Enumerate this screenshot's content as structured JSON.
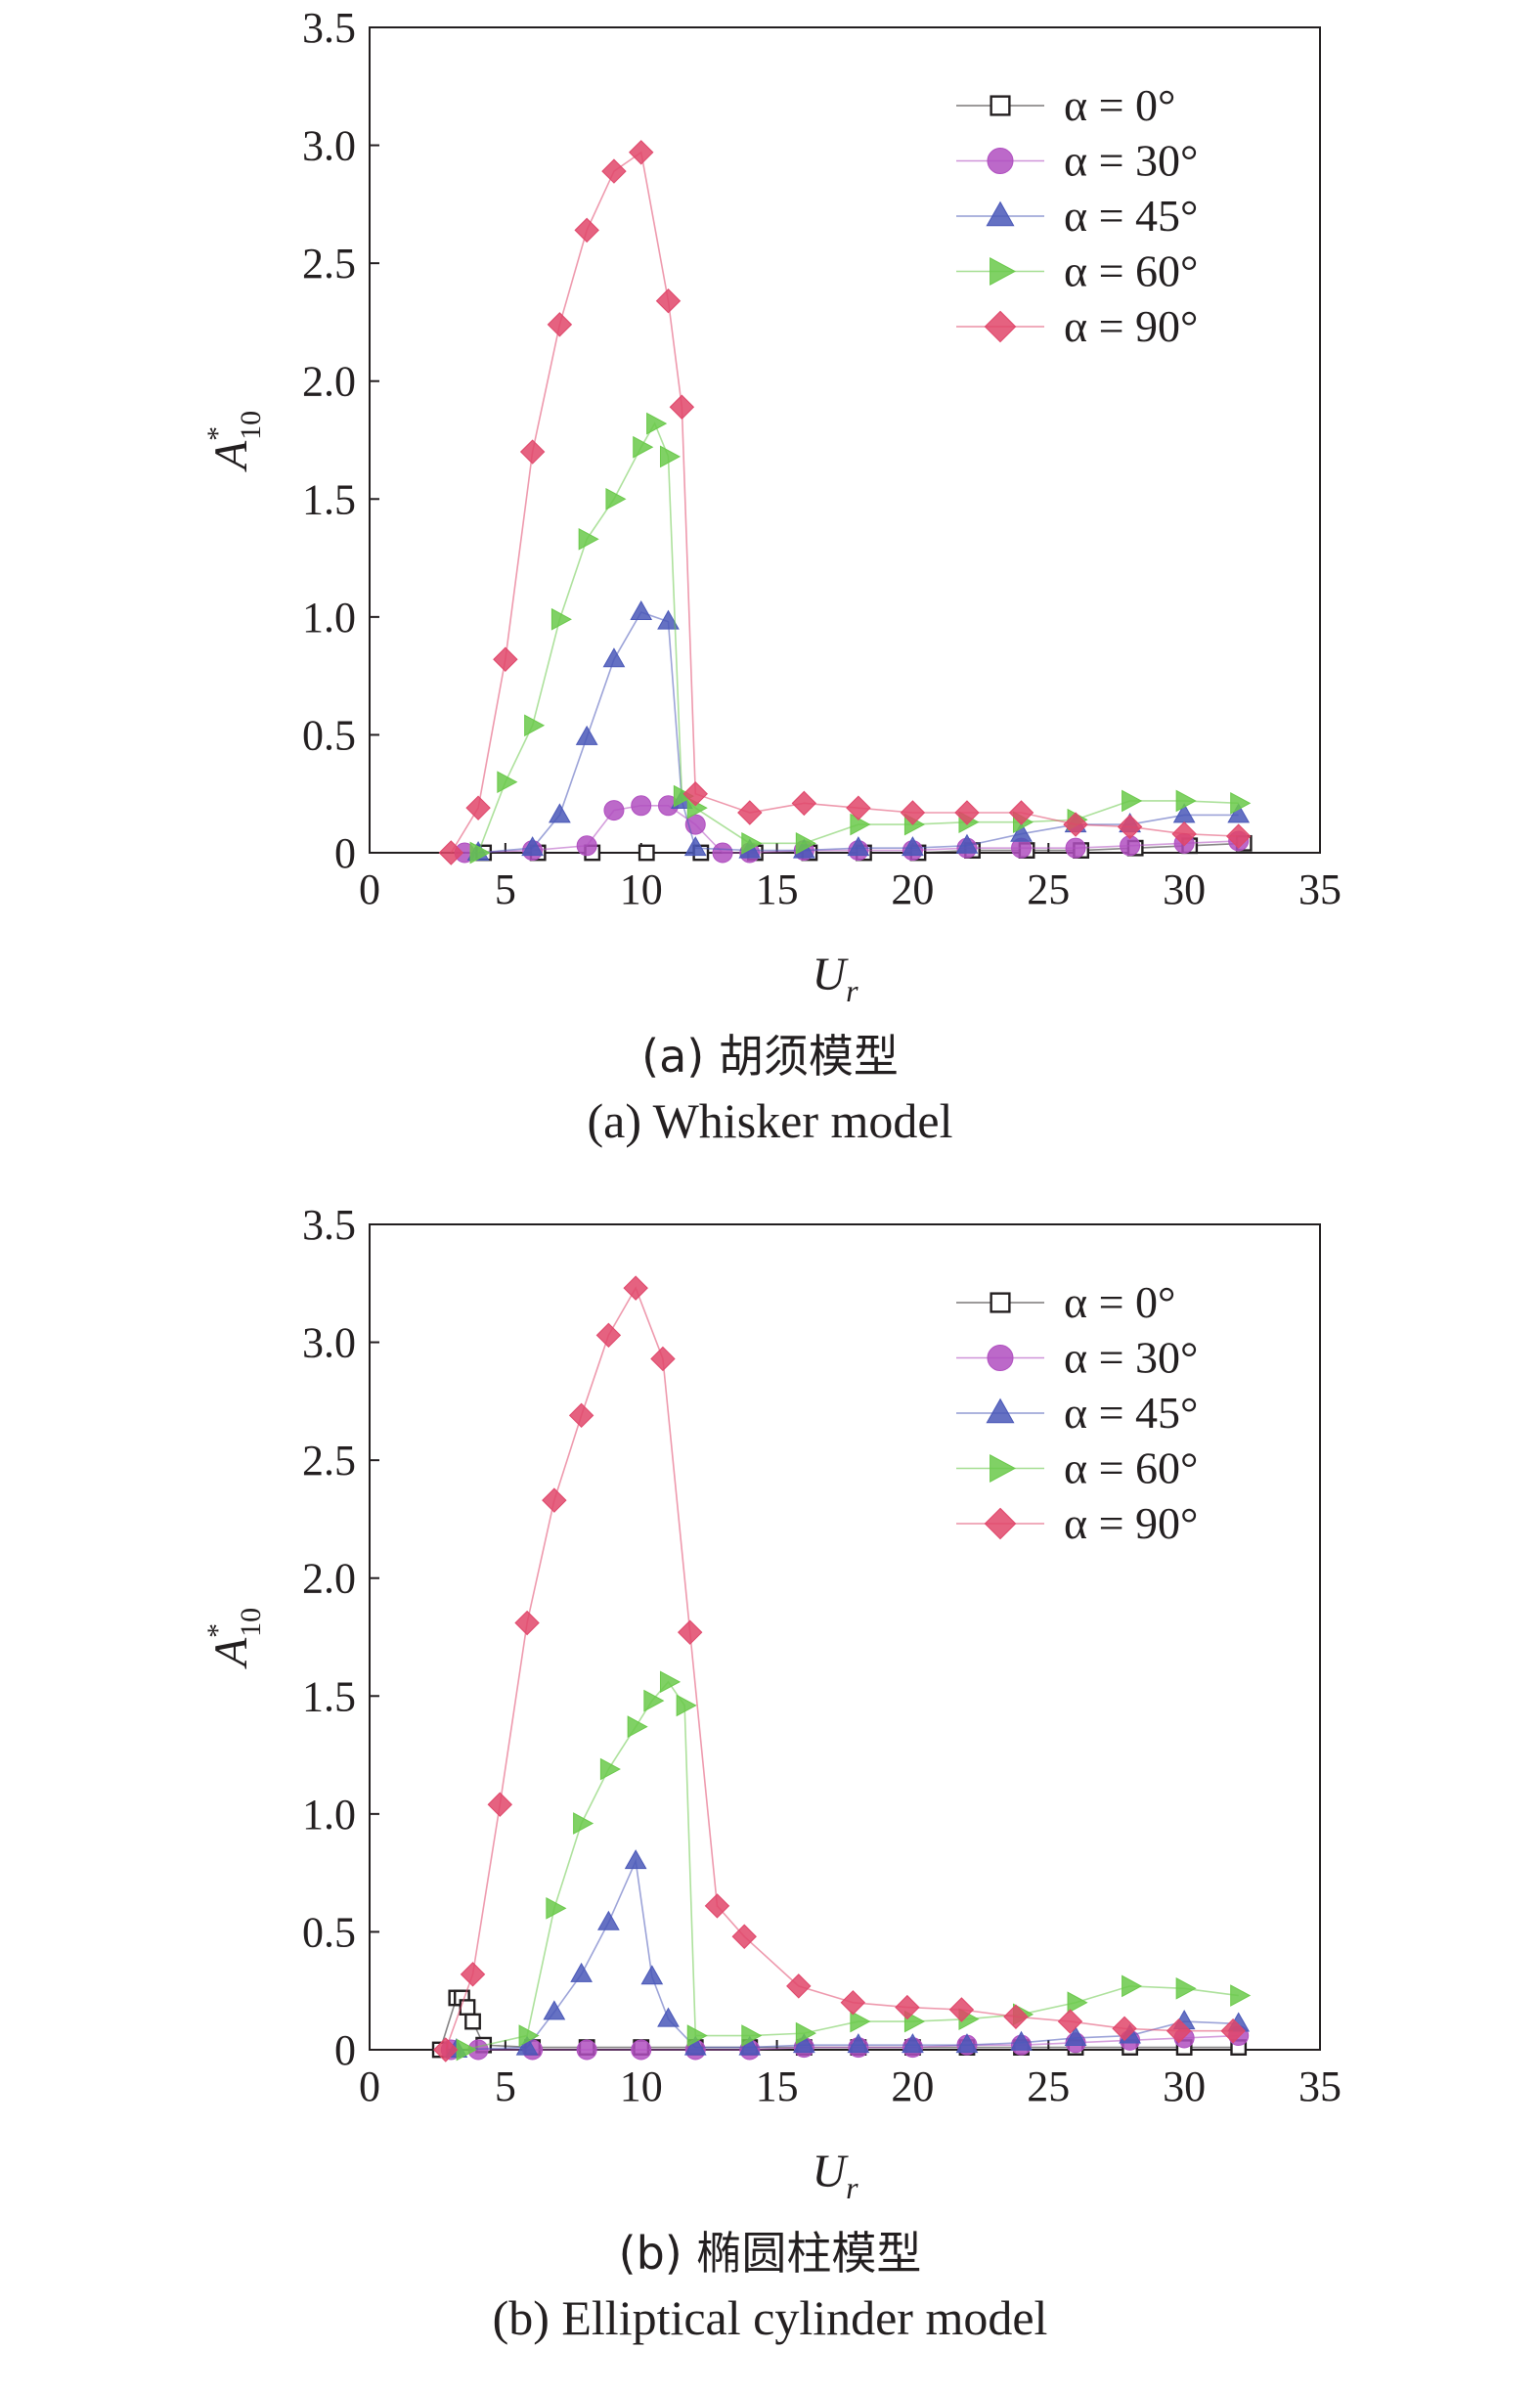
{
  "figure": {
    "panels": [
      {
        "id": "a",
        "caption_cn": "(a) 胡须模型",
        "caption_en": "(a) Whisker model"
      },
      {
        "id": "b",
        "caption_cn": "(b) 椭圆柱模型",
        "caption_en": "(b) Elliptical cylinder model"
      }
    ]
  },
  "chart_data": [
    {
      "type": "line",
      "xlabel": "U",
      "xlabel_sub": "r",
      "ylabel": "A",
      "ylabel_sup": "*",
      "ylabel_sub": "10",
      "xlim": [
        0,
        35
      ],
      "ylim": [
        0,
        3.5
      ],
      "xticks": [
        "0",
        "5",
        "10",
        "15",
        "20",
        "25",
        "30",
        "35"
      ],
      "yticks": [
        "0",
        "0.5",
        "1.0",
        "1.5",
        "2.0",
        "2.5",
        "3.0",
        "3.5"
      ],
      "grid": false,
      "legend_position": "top-right",
      "series": [
        {
          "name": "α = 0°",
          "marker": "square-open",
          "color": "#231f20",
          "x": [
            4.2,
            6.2,
            8.2,
            10.2,
            12.2,
            14.2,
            16.2,
            18.2,
            20.2,
            22.2,
            24.2,
            26.2,
            28.2,
            30.2,
            32.2
          ],
          "y": [
            0.0,
            0.0,
            0.0,
            0.0,
            0.0,
            0.0,
            0.0,
            0.0,
            0.0,
            0.01,
            0.01,
            0.01,
            0.02,
            0.03,
            0.04
          ]
        },
        {
          "name": "α = 30°",
          "marker": "circle",
          "color": "#b04fc0",
          "x": [
            3.5,
            6.0,
            8.0,
            9.0,
            10.0,
            11.0,
            12.0,
            13.0,
            14.0,
            16.0,
            18.0,
            20.0,
            22.0,
            24.0,
            26.0,
            28.0,
            30.0,
            32.0
          ],
          "y": [
            0.0,
            0.01,
            0.03,
            0.18,
            0.2,
            0.2,
            0.12,
            0.0,
            0.0,
            0.01,
            0.01,
            0.01,
            0.02,
            0.02,
            0.02,
            0.03,
            0.04,
            0.05
          ]
        },
        {
          "name": "α = 45°",
          "marker": "triangle-up",
          "color": "#4a58b8",
          "x": [
            4.0,
            6.0,
            7.0,
            8.0,
            9.0,
            10.0,
            11.0,
            11.5,
            12.0,
            14.0,
            16.0,
            18.0,
            20.0,
            22.0,
            24.0,
            26.0,
            28.0,
            30.0,
            32.0
          ],
          "y": [
            0.0,
            0.02,
            0.16,
            0.49,
            0.82,
            1.02,
            0.98,
            0.22,
            0.02,
            0.01,
            0.01,
            0.02,
            0.02,
            0.03,
            0.08,
            0.12,
            0.12,
            0.16,
            0.16
          ]
        },
        {
          "name": "α = 60°",
          "marker": "triangle-right",
          "color": "#6ac94a",
          "x": [
            4.0,
            5.0,
            6.0,
            7.0,
            8.0,
            9.0,
            10.0,
            10.5,
            11.0,
            11.5,
            12.0,
            14.0,
            16.0,
            18.0,
            20.0,
            22.0,
            24.0,
            26.0,
            28.0,
            30.0,
            32.0
          ],
          "y": [
            0.0,
            0.3,
            0.54,
            0.99,
            1.33,
            1.5,
            1.72,
            1.82,
            1.68,
            0.24,
            0.19,
            0.04,
            0.04,
            0.12,
            0.12,
            0.13,
            0.13,
            0.14,
            0.22,
            0.22,
            0.21
          ]
        },
        {
          "name": "α = 90°",
          "marker": "diamond",
          "color": "#e0466a",
          "x": [
            3.0,
            4.0,
            5.0,
            6.0,
            7.0,
            8.0,
            9.0,
            10.0,
            11.0,
            11.5,
            12.0,
            14.0,
            16.0,
            18.0,
            20.0,
            22.0,
            24.0,
            26.0,
            28.0,
            30.0,
            32.0
          ],
          "y": [
            0.0,
            0.19,
            0.82,
            1.7,
            2.24,
            2.64,
            2.89,
            2.97,
            2.34,
            1.89,
            0.25,
            0.17,
            0.21,
            0.19,
            0.17,
            0.17,
            0.17,
            0.12,
            0.11,
            0.08,
            0.07
          ]
        }
      ]
    },
    {
      "type": "line",
      "xlabel": "U",
      "xlabel_sub": "r",
      "ylabel": "A",
      "ylabel_sup": "*",
      "ylabel_sub": "10",
      "xlim": [
        0,
        35
      ],
      "ylim": [
        0,
        3.5
      ],
      "xticks": [
        "0",
        "5",
        "10",
        "15",
        "20",
        "25",
        "30",
        "35"
      ],
      "yticks": [
        "0",
        "0.5",
        "1.0",
        "1.5",
        "2.0",
        "2.5",
        "3.0",
        "3.5"
      ],
      "grid": false,
      "legend_position": "top-right",
      "series": [
        {
          "name": "α = 0°",
          "marker": "square-open",
          "color": "#231f20",
          "x": [
            2.6,
            3.2,
            3.4,
            3.6,
            3.8,
            4.2,
            6.0,
            8.0,
            10.0,
            12.0,
            14.0,
            16.0,
            18.0,
            20.0,
            22.0,
            24.0,
            26.0,
            28.0,
            30.0,
            32.0
          ],
          "y": [
            0.0,
            0.22,
            0.22,
            0.18,
            0.12,
            0.02,
            0.01,
            0.01,
            0.01,
            0.01,
            0.01,
            0.01,
            0.01,
            0.01,
            0.01,
            0.01,
            0.01,
            0.01,
            0.01,
            0.01
          ]
        },
        {
          "name": "α = 30°",
          "marker": "circle",
          "color": "#b04fc0",
          "x": [
            3.0,
            4.0,
            6.0,
            8.0,
            10.0,
            12.0,
            14.0,
            16.0,
            18.0,
            20.0,
            22.0,
            24.0,
            26.0,
            28.0,
            30.0,
            32.0
          ],
          "y": [
            0.0,
            0.0,
            0.0,
            0.0,
            0.0,
            0.0,
            0.0,
            0.01,
            0.01,
            0.01,
            0.02,
            0.02,
            0.03,
            0.04,
            0.05,
            0.06
          ]
        },
        {
          "name": "α = 45°",
          "marker": "triangle-up",
          "color": "#4a58b8",
          "x": [
            3.2,
            5.8,
            6.8,
            7.8,
            8.8,
            9.8,
            10.4,
            11.0,
            12.0,
            14.0,
            16.0,
            18.0,
            20.0,
            22.0,
            24.0,
            26.0,
            28.0,
            30.0,
            32.0
          ],
          "y": [
            0.0,
            0.01,
            0.16,
            0.32,
            0.54,
            0.8,
            0.31,
            0.13,
            0.01,
            0.01,
            0.02,
            0.02,
            0.02,
            0.02,
            0.03,
            0.05,
            0.06,
            0.12,
            0.11
          ]
        },
        {
          "name": "α = 60°",
          "marker": "triangle-right",
          "color": "#6ac94a",
          "x": [
            3.5,
            5.8,
            6.8,
            7.8,
            8.8,
            9.8,
            10.4,
            11.0,
            11.6,
            12.0,
            14.0,
            16.0,
            18.0,
            20.0,
            22.0,
            24.0,
            26.0,
            28.0,
            30.0,
            32.0
          ],
          "y": [
            0.0,
            0.06,
            0.6,
            0.96,
            1.19,
            1.37,
            1.48,
            1.56,
            1.46,
            0.06,
            0.06,
            0.07,
            0.12,
            0.12,
            0.13,
            0.15,
            0.2,
            0.27,
            0.26,
            0.23
          ]
        },
        {
          "name": "α = 90°",
          "marker": "diamond",
          "color": "#e0466a",
          "x": [
            2.8,
            3.8,
            4.8,
            5.8,
            6.8,
            7.8,
            8.8,
            9.8,
            10.8,
            11.8,
            12.8,
            13.8,
            15.8,
            17.8,
            19.8,
            21.8,
            23.8,
            25.8,
            27.8,
            29.8,
            31.8
          ],
          "y": [
            0.0,
            0.32,
            1.04,
            1.81,
            2.33,
            2.69,
            3.03,
            3.23,
            2.93,
            1.77,
            0.61,
            0.48,
            0.27,
            0.2,
            0.18,
            0.17,
            0.14,
            0.12,
            0.09,
            0.08,
            0.08
          ]
        }
      ]
    }
  ]
}
